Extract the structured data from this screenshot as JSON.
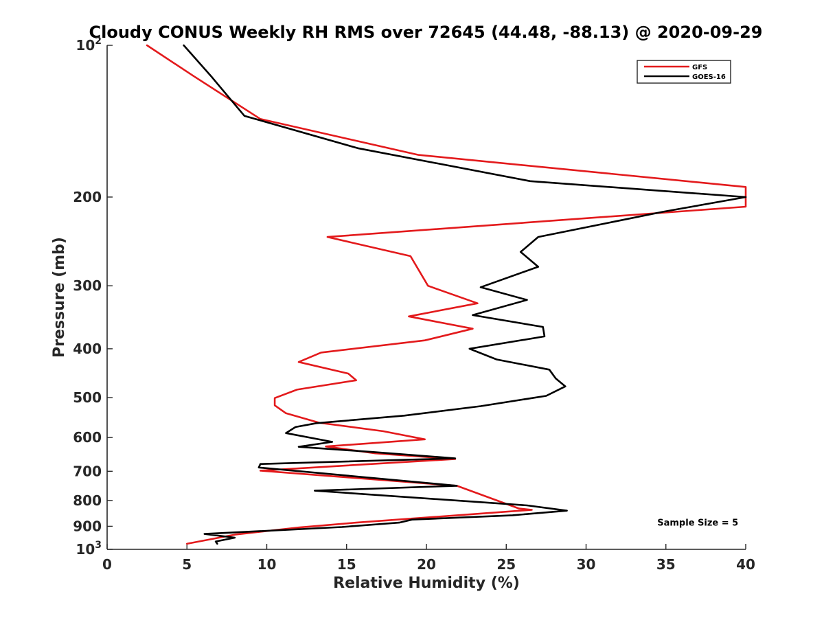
{
  "chart_data": {
    "type": "line",
    "title": "Cloudy CONUS Weekly RH RMS over 72645 (44.48, -88.13) @ 2020-09-29",
    "xlabel": "Relative Humidity (%)",
    "ylabel": "Pressure (mb)",
    "xlim": [
      0,
      40
    ],
    "ylim": [
      100,
      1000
    ],
    "y_scale": "log",
    "y_reversed": true,
    "grid": false,
    "legend_placement": "top-right",
    "x_ticks": [
      0,
      5,
      10,
      15,
      20,
      25,
      30,
      35,
      40
    ],
    "x_tick_labels": [
      "0",
      "5",
      "10",
      "15",
      "20",
      "25",
      "30",
      "35",
      "40"
    ],
    "y_ticks": [
      {
        "value": 100,
        "base": "10",
        "exp": "2",
        "label": ""
      },
      {
        "value": 200,
        "label": "200"
      },
      {
        "value": 300,
        "label": "300"
      },
      {
        "value": 400,
        "label": "400"
      },
      {
        "value": 500,
        "label": "500"
      },
      {
        "value": 600,
        "label": "600"
      },
      {
        "value": 700,
        "label": "700"
      },
      {
        "value": 800,
        "label": "800"
      },
      {
        "value": 900,
        "label": "900"
      },
      {
        "value": 1000,
        "base": "10",
        "exp": "3",
        "label": ""
      }
    ],
    "series": [
      {
        "name": "GFS",
        "color": "#e31a1c",
        "points": [
          [
            2.5,
            100
          ],
          [
            5.4,
            115
          ],
          [
            9.6,
            140
          ],
          [
            19.5,
            165
          ],
          [
            40,
            191
          ],
          [
            40,
            209
          ],
          [
            13.8,
            240
          ],
          [
            19.0,
            262
          ],
          [
            20.1,
            300
          ],
          [
            23.2,
            325
          ],
          [
            18.9,
            345
          ],
          [
            22.9,
            365
          ],
          [
            19.9,
            385
          ],
          [
            13.4,
            407
          ],
          [
            12.0,
            425
          ],
          [
            15.1,
            448
          ],
          [
            15.6,
            462
          ],
          [
            11.9,
            482
          ],
          [
            10.5,
            501
          ],
          [
            10.5,
            518
          ],
          [
            11.2,
            537
          ],
          [
            13.3,
            561
          ],
          [
            17.3,
            583
          ],
          [
            19.9,
            605
          ],
          [
            13.7,
            625
          ],
          [
            16.8,
            645
          ],
          [
            21.8,
            662
          ],
          [
            9.6,
            698
          ],
          [
            21.9,
            748
          ],
          [
            25.8,
            830
          ],
          [
            26.6,
            835
          ],
          [
            15.6,
            885
          ],
          [
            12.0,
            905
          ],
          [
            8.0,
            935
          ],
          [
            5.0,
            975
          ]
        ]
      },
      {
        "name": "GOES-16",
        "color": "#000000",
        "points": [
          [
            4.8,
            100
          ],
          [
            6.5,
            115
          ],
          [
            8.6,
            138
          ],
          [
            15.7,
            160
          ],
          [
            26.5,
            186
          ],
          [
            40,
            200
          ],
          [
            34.8,
            214
          ],
          [
            27.0,
            240
          ],
          [
            25.9,
            257
          ],
          [
            27.0,
            275
          ],
          [
            23.4,
            302
          ],
          [
            26.3,
            320
          ],
          [
            22.9,
            343
          ],
          [
            27.3,
            362
          ],
          [
            27.4,
            378
          ],
          [
            22.7,
            400
          ],
          [
            24.4,
            420
          ],
          [
            27.7,
            440
          ],
          [
            28.1,
            458
          ],
          [
            28.7,
            475
          ],
          [
            27.5,
            496
          ],
          [
            23.4,
            520
          ],
          [
            18.6,
            543
          ],
          [
            13.1,
            562
          ],
          [
            11.8,
            572
          ],
          [
            11.2,
            588
          ],
          [
            14.1,
            612
          ],
          [
            12.0,
            626
          ],
          [
            16.6,
            641
          ],
          [
            21.8,
            660
          ],
          [
            9.6,
            677
          ],
          [
            9.5,
            688
          ],
          [
            21.9,
            748
          ],
          [
            13.0,
            765
          ],
          [
            26.3,
            818
          ],
          [
            28.8,
            838
          ],
          [
            25.4,
            856
          ],
          [
            19.1,
            873
          ],
          [
            18.3,
            885
          ],
          [
            14.7,
            903
          ],
          [
            6.1,
            932
          ],
          [
            8.0,
            948
          ],
          [
            6.8,
            965
          ],
          [
            6.9,
            975
          ]
        ]
      }
    ],
    "annotations": [
      {
        "text": "Sample Size = 5",
        "x": 37,
        "y": 898
      }
    ]
  }
}
